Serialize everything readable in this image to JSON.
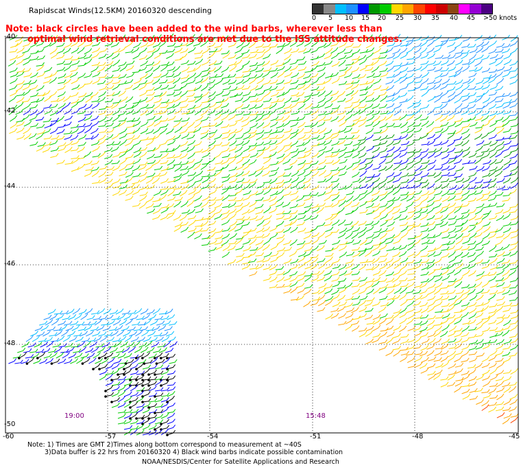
{
  "title": "Rapidscat Winds(12.5KM) 20160320 descending",
  "note_line1": "Note: black circles have been added to the wind barbs, wherever less than",
  "note_line2": "optimal wind retrieval conditions are met due to the ISS attitude changes.",
  "color_scale": {
    "labels": [
      "0",
      "5",
      "10",
      "15",
      "20",
      "25",
      "30",
      "35",
      "40",
      "45",
      ">50 knots"
    ],
    "colors": [
      "#333333",
      "#888888",
      "#00bfff",
      "#1e90ff",
      "#0000ff",
      "#009900",
      "#00cc00",
      "#ffd700",
      "#ffa500",
      "#ff4500",
      "#ff0000",
      "#cc0000",
      "#8b4513",
      "#ff00ff",
      "#9400d3",
      "#4b0082"
    ]
  },
  "lat_labels": [
    "-40",
    "-42",
    "-44",
    "-46",
    "-48",
    "-50"
  ],
  "lon_labels": [
    "-60",
    "-57",
    "-54",
    "-51",
    "-48",
    "-45"
  ],
  "pass_times": [
    "19:00",
    "15:48"
  ],
  "footnote1": "Note: 1) Times are GMT 2)Times along bottom correspond to measurement at ~40S",
  "footnote2": "3)Data buffer is 22 hrs from 20160320 4) Black wind barbs indicate possible contamination",
  "credit": "NOAA/NESDIS/Center for Satellite Applications and Research"
}
